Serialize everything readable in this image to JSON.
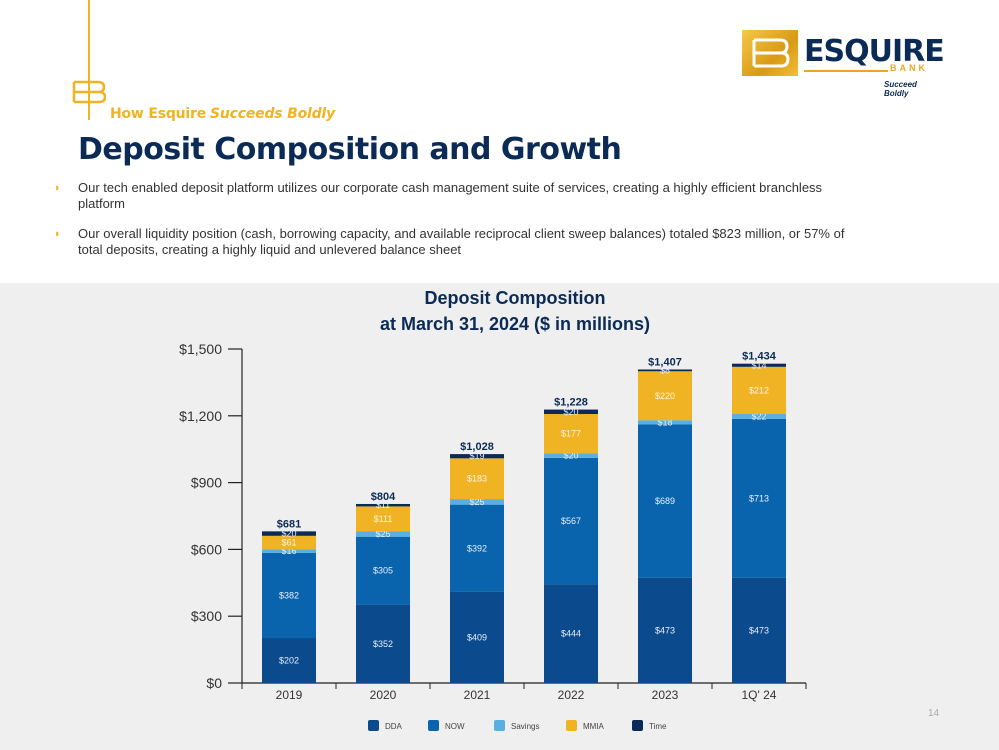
{
  "header": {
    "tagline_prefix": "How Esquire",
    "tagline_suffix": "Succeeds Boldly",
    "title": "Deposit Composition and Growth"
  },
  "logo": {
    "word": "ESQUIRE",
    "bank": "BANK",
    "tagline": "Succeed Boldly",
    "colors": {
      "navy": "#0b2b56",
      "gold": "#e9a820"
    }
  },
  "bullets": [
    "Our tech enabled deposit platform utilizes our corporate cash management suite of services, creating a highly efficient branchless platform",
    "Our overall liquidity position (cash, borrowing capacity, and available reciprocal client sweep balances) totaled $823 million, or 57% of total deposits, creating a highly liquid and unlevered balance sheet"
  ],
  "page_number": "14",
  "chart_data": {
    "type": "bar",
    "stacked": true,
    "title_line1": "Deposit Composition",
    "title_line2": "at March 31, 2024 ($ in millions)",
    "categories": [
      "2019",
      "2020",
      "2021",
      "2022",
      "2023",
      "1Q' 24"
    ],
    "ylim": [
      0,
      1500
    ],
    "yticks": [
      0,
      300,
      600,
      900,
      1200,
      1500
    ],
    "ytick_labels": [
      "$0",
      "$300",
      "$600",
      "$900",
      "$1,200",
      "$1,500"
    ],
    "totals": [
      "$681",
      "$804",
      "$1,028",
      "$1,228",
      "$1,407",
      "$1,434"
    ],
    "total_values": [
      681,
      804,
      1028,
      1228,
      1407,
      1434
    ],
    "legend_position": "bottom",
    "series": [
      {
        "name": "DDA",
        "color": "#0b4a8c",
        "values": [
          202,
          352,
          409,
          444,
          473,
          473
        ],
        "labels": [
          "$202",
          "$352",
          "$409",
          "$444",
          "$473",
          "$473"
        ]
      },
      {
        "name": "NOW",
        "color": "#0a64ad",
        "values": [
          382,
          305,
          392,
          567,
          689,
          713
        ],
        "labels": [
          "$382",
          "$305",
          "$392",
          "$567",
          "$689",
          "$713"
        ]
      },
      {
        "name": "Savings",
        "color": "#5aaee0",
        "values": [
          16,
          25,
          25,
          20,
          18,
          22
        ],
        "labels": [
          "$16",
          "$25",
          "$25",
          "$20",
          "$18",
          "$22"
        ]
      },
      {
        "name": "MMIA",
        "color": "#f0b323",
        "values": [
          61,
          111,
          183,
          177,
          220,
          212
        ],
        "labels": [
          "$61",
          "$111",
          "$183",
          "$177",
          "$220",
          "$212"
        ]
      },
      {
        "name": "Time",
        "color": "#0b2b56",
        "values": [
          20,
          11,
          19,
          20,
          8,
          14
        ],
        "labels": [
          "$20",
          "$11",
          "$19",
          "$20",
          "$8",
          "$14"
        ]
      }
    ]
  }
}
